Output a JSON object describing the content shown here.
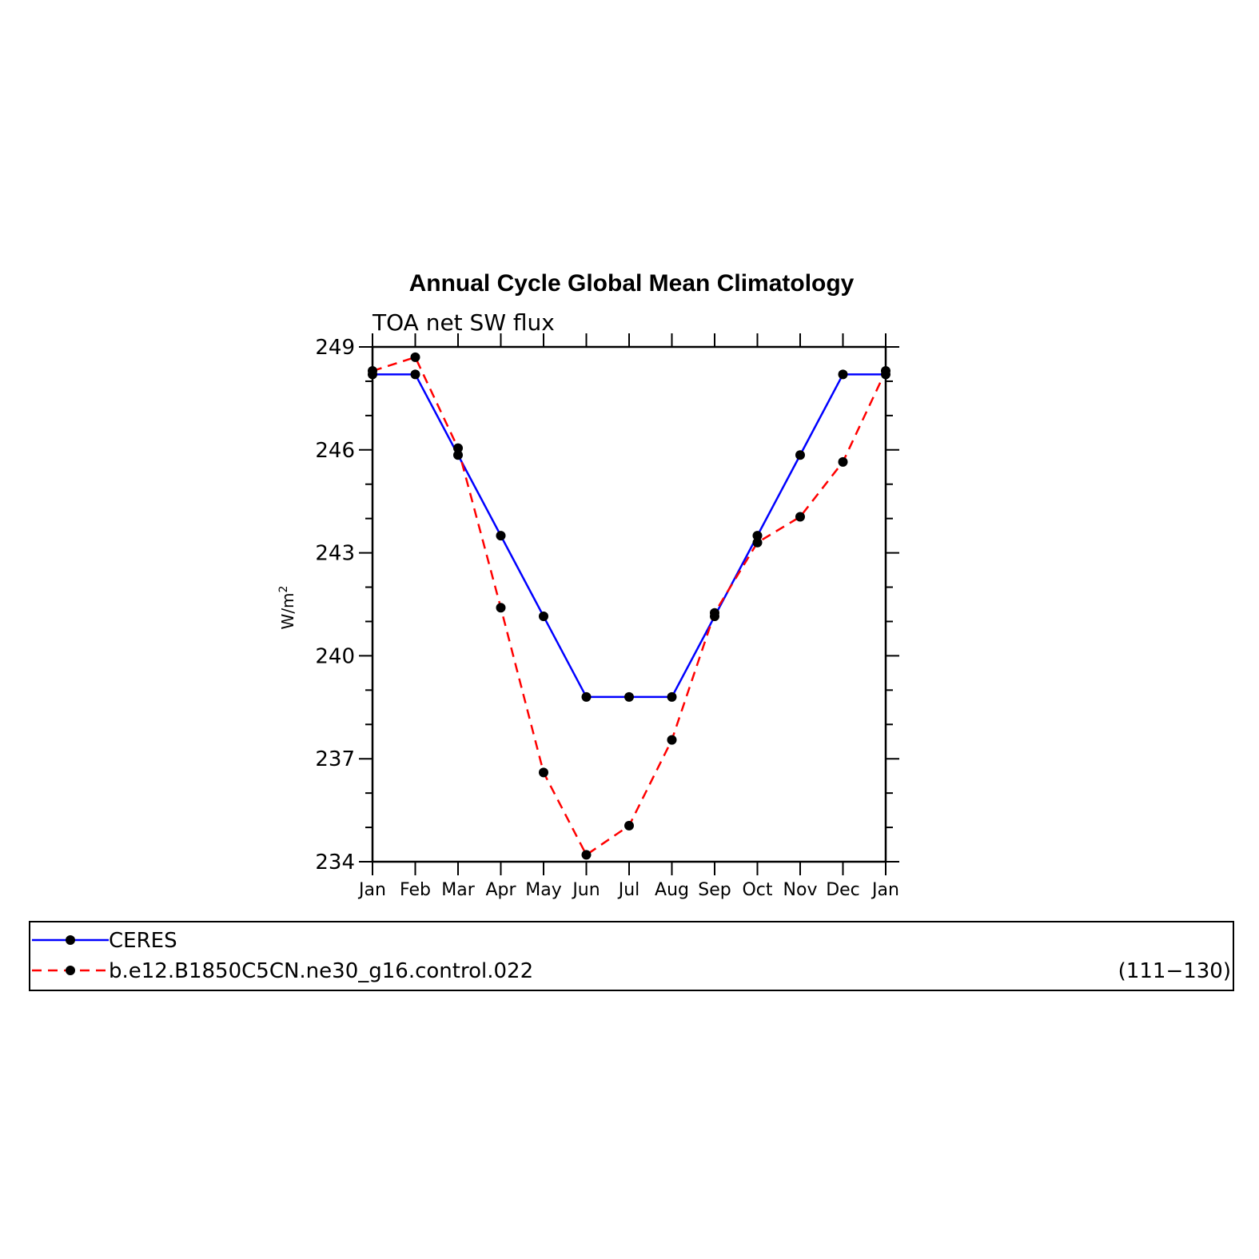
{
  "chart_data": {
    "type": "line",
    "title": "Annual Cycle Global Mean Climatology",
    "subtitle": "TOA net SW flux",
    "ylabel_base": "W/m",
    "ylabel_sup": "2",
    "xlabel": "",
    "categories": [
      "Jan",
      "Feb",
      "Mar",
      "Apr",
      "May",
      "Jun",
      "Jul",
      "Aug",
      "Sep",
      "Oct",
      "Nov",
      "Dec",
      "Jan"
    ],
    "ylim": [
      234,
      249
    ],
    "yticks": [
      234,
      237,
      240,
      243,
      246,
      249
    ],
    "yticks_minor_step": 1,
    "grid": false,
    "legend_position": "bottom",
    "series": [
      {
        "name": "CERES",
        "color": "#0000ff",
        "dash": "solid",
        "values": [
          248.2,
          248.2,
          245.85,
          243.5,
          241.15,
          238.8,
          238.8,
          238.8,
          241.15,
          243.5,
          245.85,
          248.2,
          248.2
        ]
      },
      {
        "name": "b.e12.B1850C5CN.ne30_g16.control.022",
        "color": "#ff0000",
        "dash": "dashed",
        "values": [
          248.3,
          248.7,
          246.05,
          241.4,
          236.6,
          234.2,
          235.05,
          237.55,
          241.25,
          243.3,
          244.05,
          245.65,
          248.3
        ]
      }
    ],
    "legend_note": "(111−130)"
  }
}
